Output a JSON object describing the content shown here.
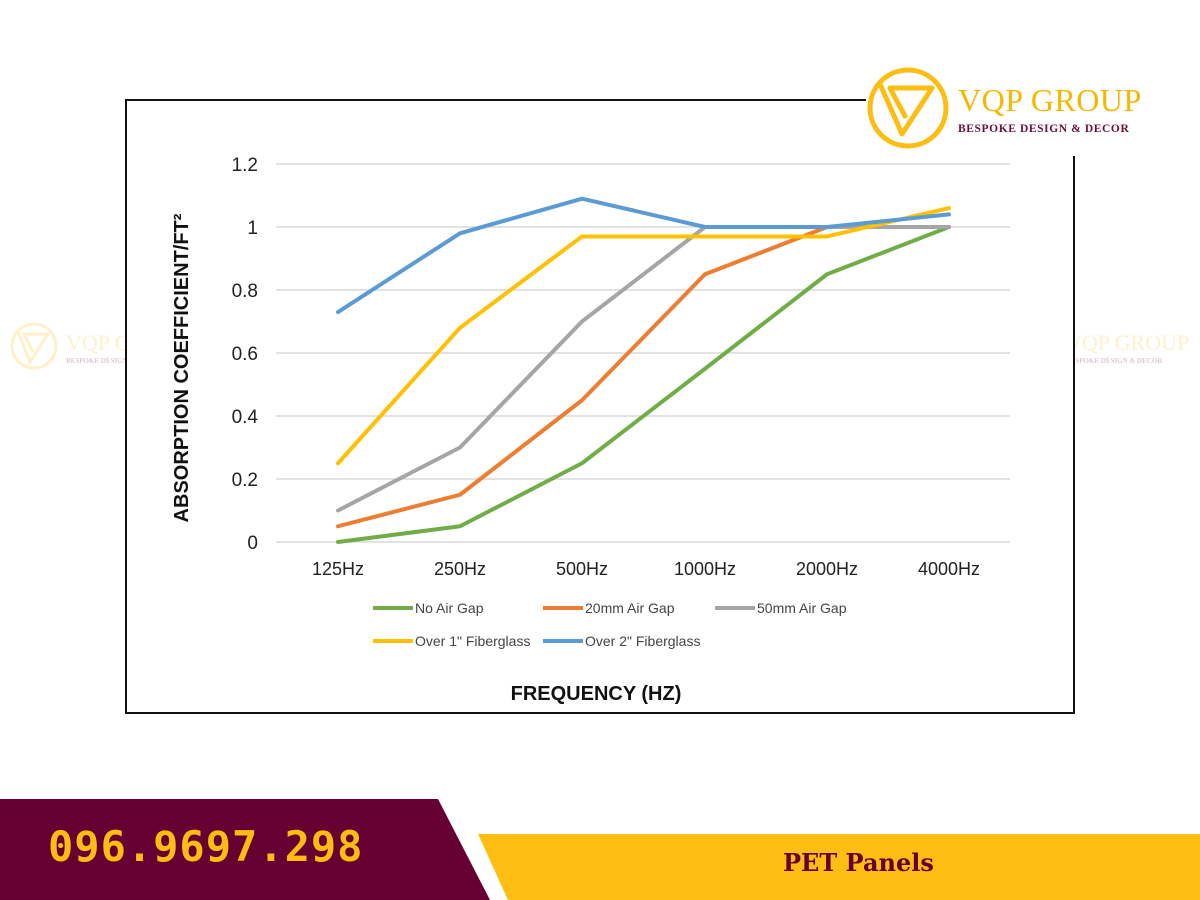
{
  "brand": {
    "name": "VQP GROUP",
    "tagline": "BESPOKE DESIGN & DECOR",
    "primary_color": "#660033",
    "accent_color": "#fdbd13"
  },
  "footer": {
    "phone": "096.9697.298",
    "title": "PET Panels"
  },
  "chart_data": {
    "type": "line",
    "title": "",
    "xlabel": "FREQUENCY (HZ)",
    "ylabel": "ABSORPTION COEFFICIENT/FT²",
    "categories": [
      "125Hz",
      "250Hz",
      "500Hz",
      "1000Hz",
      "2000Hz",
      "4000Hz"
    ],
    "y_ticks": [
      "0",
      "0.2",
      "0.4",
      "0.6",
      "0.8",
      "1",
      "1.2"
    ],
    "ylim": [
      0,
      1.2
    ],
    "grid": true,
    "legend_position": "bottom",
    "series": [
      {
        "name": "No Air Gap",
        "color": "#70ad47",
        "values": [
          0.0,
          0.05,
          0.25,
          0.55,
          0.85,
          1.0
        ]
      },
      {
        "name": "20mm Air Gap",
        "color": "#ed7d31",
        "values": [
          0.05,
          0.15,
          0.45,
          0.85,
          1.0,
          1.0
        ]
      },
      {
        "name": "50mm Air  Gap",
        "color": "#a5a5a5",
        "values": [
          0.1,
          0.3,
          0.7,
          1.0,
          1.0,
          1.0
        ]
      },
      {
        "name": "Over 1\" Fiberglass",
        "color": "#ffc000",
        "values": [
          0.25,
          0.68,
          0.97,
          0.97,
          0.97,
          1.06
        ]
      },
      {
        "name": "Over 2\" Fiberglass",
        "color": "#5b9bd5",
        "values": [
          0.73,
          0.98,
          1.09,
          1.0,
          1.0,
          1.04
        ]
      }
    ]
  }
}
